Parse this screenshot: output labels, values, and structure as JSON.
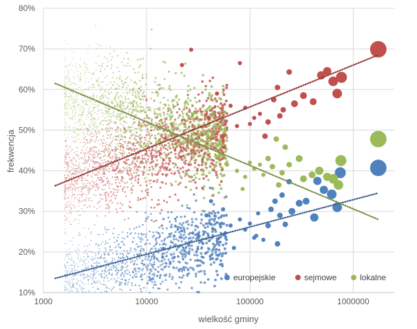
{
  "chart_data": {
    "type": "scatter",
    "title": "",
    "xlabel": "wielkość gminy",
    "ylabel": "frekwencja",
    "x_scale": "log",
    "xlim": [
      1000,
      2500000
    ],
    "ylim": [
      10,
      80
    ],
    "x_ticks": [
      1000,
      10000,
      100000,
      1000000
    ],
    "x_tick_labels": [
      "1000",
      "10000",
      "100000",
      "1000000"
    ],
    "y_ticks": [
      10,
      20,
      30,
      40,
      50,
      60,
      70,
      80
    ],
    "y_tick_labels": [
      "10%",
      "20%",
      "30%",
      "40%",
      "50%",
      "60%",
      "70%",
      "80%"
    ],
    "grid": true,
    "legend_position": "bottom-right",
    "series": [
      {
        "name": "europejskie",
        "color": "#4f81bd",
        "trendline": {
          "x": [
            1300,
            1750000
          ],
          "y": [
            13.5,
            34.5
          ]
        },
        "points": [
          {
            "x": 1750000,
            "y": 40.7,
            "size": 12
          },
          {
            "x": 750000,
            "y": 39.5,
            "size": 8
          },
          {
            "x": 700000,
            "y": 31.0,
            "size": 7
          },
          {
            "x": 620000,
            "y": 34.2,
            "size": 7
          },
          {
            "x": 520000,
            "y": 35.3,
            "size": 6
          },
          {
            "x": 450000,
            "y": 37.5,
            "size": 6
          },
          {
            "x": 420000,
            "y": 28.5,
            "size": 6
          },
          {
            "x": 350000,
            "y": 32.5,
            "size": 5
          },
          {
            "x": 300000,
            "y": 32.0,
            "size": 5
          },
          {
            "x": 255000,
            "y": 30.0,
            "size": 5
          },
          {
            "x": 240000,
            "y": 37.3,
            "size": 4
          },
          {
            "x": 220000,
            "y": 26.8,
            "size": 4
          },
          {
            "x": 205000,
            "y": 34.0,
            "size": 4
          },
          {
            "x": 195000,
            "y": 29.0,
            "size": 4
          },
          {
            "x": 185000,
            "y": 22.0,
            "size": 4
          },
          {
            "x": 175000,
            "y": 32.5,
            "size": 4
          },
          {
            "x": 160000,
            "y": 30.5,
            "size": 4
          },
          {
            "x": 150000,
            "y": 26.5,
            "size": 4
          },
          {
            "x": 135000,
            "y": 23.0,
            "size": 3
          },
          {
            "x": 120000,
            "y": 29.5,
            "size": 3
          },
          {
            "x": 115000,
            "y": 24.0,
            "size": 3
          },
          {
            "x": 110000,
            "y": 23.5,
            "size": 3
          },
          {
            "x": 100000,
            "y": 27.0,
            "size": 3
          },
          {
            "x": 90000,
            "y": 25.5,
            "size": 3
          },
          {
            "x": 80000,
            "y": 28.0,
            "size": 3
          },
          {
            "x": 70000,
            "y": 21.0,
            "size": 3
          },
          {
            "x": 65000,
            "y": 26.5,
            "size": 3
          },
          {
            "x": 55000,
            "y": 30.5,
            "size": 3
          },
          {
            "x": 42000,
            "y": 32.5,
            "size": 3
          },
          {
            "x": 38000,
            "y": 29.0,
            "size": 3
          }
        ],
        "cloud": {
          "x_min": 1600,
          "x_max": 60000,
          "y_center_at_min": 12.5,
          "y_center_at_max": 24.0,
          "spread": 4.5,
          "count": 1300
        }
      },
      {
        "name": "sejmowe",
        "color": "#c0504d",
        "trendline": {
          "x": [
            1300,
            1750000
          ],
          "y": [
            36.3,
            68.5
          ]
        },
        "points": [
          {
            "x": 1750000,
            "y": 69.9,
            "size": 12
          },
          {
            "x": 770000,
            "y": 63.0,
            "size": 8
          },
          {
            "x": 700000,
            "y": 59.0,
            "size": 7
          },
          {
            "x": 640000,
            "y": 62.0,
            "size": 7
          },
          {
            "x": 560000,
            "y": 64.5,
            "size": 6
          },
          {
            "x": 490000,
            "y": 63.5,
            "size": 6
          },
          {
            "x": 410000,
            "y": 57.0,
            "size": 5
          },
          {
            "x": 330000,
            "y": 58.5,
            "size": 5
          },
          {
            "x": 270000,
            "y": 56.5,
            "size": 5
          },
          {
            "x": 240000,
            "y": 64.3,
            "size": 4
          },
          {
            "x": 210000,
            "y": 55.0,
            "size": 4
          },
          {
            "x": 195000,
            "y": 53.5,
            "size": 4
          },
          {
            "x": 185000,
            "y": 60.5,
            "size": 4
          },
          {
            "x": 170000,
            "y": 57.5,
            "size": 4
          },
          {
            "x": 150000,
            "y": 52.0,
            "size": 4
          },
          {
            "x": 140000,
            "y": 48.5,
            "size": 4
          },
          {
            "x": 125000,
            "y": 54.0,
            "size": 3
          },
          {
            "x": 110000,
            "y": 53.0,
            "size": 3
          },
          {
            "x": 100000,
            "y": 51.5,
            "size": 3
          },
          {
            "x": 90000,
            "y": 55.5,
            "size": 3
          },
          {
            "x": 80000,
            "y": 66.5,
            "size": 3
          },
          {
            "x": 75000,
            "y": 51.0,
            "size": 3
          },
          {
            "x": 65000,
            "y": 56.0,
            "size": 3
          },
          {
            "x": 55000,
            "y": 48.5,
            "size": 3
          },
          {
            "x": 48000,
            "y": 59.0,
            "size": 3
          },
          {
            "x": 40000,
            "y": 53.0,
            "size": 3
          },
          {
            "x": 27000,
            "y": 69.8,
            "size": 3
          },
          {
            "x": 22000,
            "y": 66.0,
            "size": 3
          }
        ],
        "cloud": {
          "x_min": 1600,
          "x_max": 60000,
          "y_center_at_min": 37.5,
          "y_center_at_max": 49.5,
          "spread": 5.5,
          "count": 1700
        }
      },
      {
        "name": "lokalne",
        "color": "#9bbb59",
        "trendline": {
          "x": [
            1300,
            1750000
          ],
          "y": [
            61.5,
            28.0
          ]
        },
        "points": [
          {
            "x": 1750000,
            "y": 47.8,
            "size": 12
          },
          {
            "x": 760000,
            "y": 42.5,
            "size": 8
          },
          {
            "x": 720000,
            "y": 36.5,
            "size": 7
          },
          {
            "x": 640000,
            "y": 38.0,
            "size": 7
          },
          {
            "x": 560000,
            "y": 38.5,
            "size": 6
          },
          {
            "x": 470000,
            "y": 40.0,
            "size": 6
          },
          {
            "x": 400000,
            "y": 39.0,
            "size": 5
          },
          {
            "x": 330000,
            "y": 38.0,
            "size": 5
          },
          {
            "x": 300000,
            "y": 43.0,
            "size": 5
          },
          {
            "x": 240000,
            "y": 41.5,
            "size": 4
          },
          {
            "x": 220000,
            "y": 45.8,
            "size": 4
          },
          {
            "x": 205000,
            "y": 39.5,
            "size": 4
          },
          {
            "x": 190000,
            "y": 36.5,
            "size": 4
          },
          {
            "x": 180000,
            "y": 47.8,
            "size": 4
          },
          {
            "x": 165000,
            "y": 41.0,
            "size": 4
          },
          {
            "x": 150000,
            "y": 43.0,
            "size": 4
          },
          {
            "x": 135000,
            "y": 39.0,
            "size": 3
          },
          {
            "x": 125000,
            "y": 41.5,
            "size": 3
          },
          {
            "x": 110000,
            "y": 40.5,
            "size": 3
          },
          {
            "x": 100000,
            "y": 42.0,
            "size": 3
          },
          {
            "x": 90000,
            "y": 38.5,
            "size": 3
          },
          {
            "x": 85000,
            "y": 35.5,
            "size": 3
          },
          {
            "x": 75000,
            "y": 40.0,
            "size": 3
          },
          {
            "x": 60000,
            "y": 41.5,
            "size": 3
          },
          {
            "x": 50000,
            "y": 43.5,
            "size": 3
          }
        ],
        "cloud": {
          "x_min": 1600,
          "x_max": 60000,
          "y_center_at_min": 58.0,
          "y_center_at_max": 47.0,
          "spread": 6.0,
          "count": 1500
        }
      }
    ]
  }
}
